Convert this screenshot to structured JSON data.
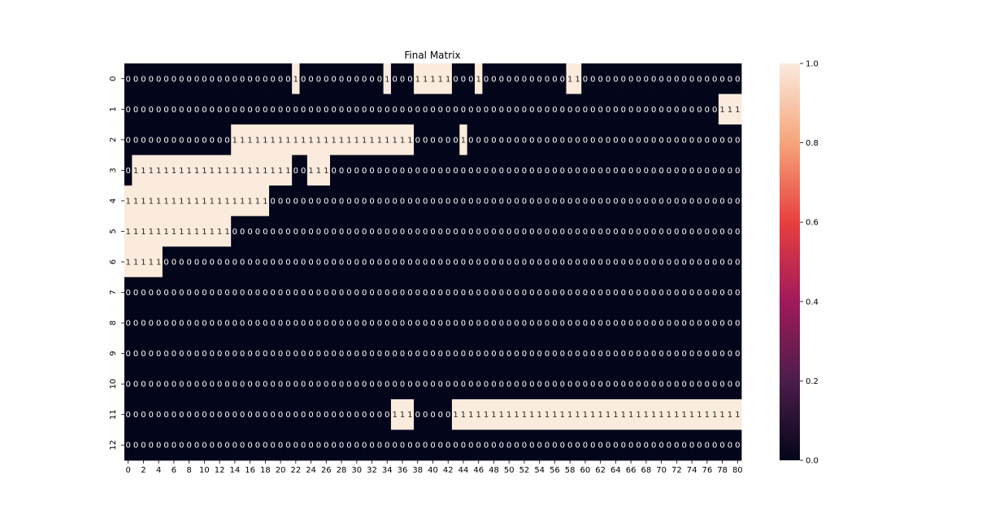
{
  "chart_data": {
    "type": "heatmap",
    "title": "Final Matrix",
    "xlabel": "",
    "ylabel": "",
    "n_rows": 13,
    "n_cols": 81,
    "row_labels": [
      "0",
      "1",
      "2",
      "3",
      "4",
      "5",
      "6",
      "7",
      "8",
      "9",
      "10",
      "11",
      "12"
    ],
    "x_tick_labels": [
      "0",
      "2",
      "4",
      "6",
      "8",
      "10",
      "12",
      "14",
      "16",
      "18",
      "20",
      "22",
      "24",
      "26",
      "28",
      "30",
      "32",
      "34",
      "36",
      "38",
      "40",
      "42",
      "44",
      "46",
      "48",
      "50",
      "52",
      "54",
      "56",
      "58",
      "60",
      "62",
      "64",
      "66",
      "68",
      "70",
      "72",
      "74",
      "76",
      "78",
      "80"
    ],
    "values": [
      [
        0,
        0,
        0,
        0,
        0,
        0,
        0,
        0,
        0,
        0,
        0,
        0,
        0,
        0,
        0,
        0,
        0,
        0,
        0,
        0,
        0,
        0,
        1,
        0,
        0,
        0,
        0,
        0,
        0,
        0,
        0,
        0,
        0,
        0,
        1,
        0,
        0,
        0,
        1,
        1,
        1,
        1,
        1,
        0,
        0,
        0,
        1,
        0,
        0,
        0,
        0,
        0,
        0,
        0,
        0,
        0,
        0,
        0,
        1,
        1,
        0,
        0,
        0,
        0,
        0,
        0,
        0,
        0,
        0,
        0,
        0,
        0,
        0,
        0,
        0,
        0,
        0,
        0,
        0,
        0,
        0
      ],
      [
        0,
        0,
        0,
        0,
        0,
        0,
        0,
        0,
        0,
        0,
        0,
        0,
        0,
        0,
        0,
        0,
        0,
        0,
        0,
        0,
        0,
        0,
        0,
        0,
        0,
        0,
        0,
        0,
        0,
        0,
        0,
        0,
        0,
        0,
        0,
        0,
        0,
        0,
        0,
        0,
        0,
        0,
        0,
        0,
        0,
        0,
        0,
        0,
        0,
        0,
        0,
        0,
        0,
        0,
        0,
        0,
        0,
        0,
        0,
        0,
        0,
        0,
        0,
        0,
        0,
        0,
        0,
        0,
        0,
        0,
        0,
        0,
        0,
        0,
        0,
        0,
        0,
        0,
        1,
        1,
        1
      ],
      [
        0,
        0,
        0,
        0,
        0,
        0,
        0,
        0,
        0,
        0,
        0,
        0,
        0,
        0,
        1,
        1,
        1,
        1,
        1,
        1,
        1,
        1,
        1,
        1,
        1,
        1,
        1,
        1,
        1,
        1,
        1,
        1,
        1,
        1,
        1,
        1,
        1,
        1,
        0,
        0,
        0,
        0,
        0,
        0,
        1,
        0,
        0,
        0,
        0,
        0,
        0,
        0,
        0,
        0,
        0,
        0,
        0,
        0,
        0,
        0,
        0,
        0,
        0,
        0,
        0,
        0,
        0,
        0,
        0,
        0,
        0,
        0,
        0,
        0,
        0,
        0,
        0,
        0,
        0,
        0,
        0
      ],
      [
        0,
        1,
        1,
        1,
        1,
        1,
        1,
        1,
        1,
        1,
        1,
        1,
        1,
        1,
        1,
        1,
        1,
        1,
        1,
        1,
        1,
        1,
        0,
        0,
        1,
        1,
        1,
        0,
        0,
        0,
        0,
        0,
        0,
        0,
        0,
        0,
        0,
        0,
        0,
        0,
        0,
        0,
        0,
        0,
        0,
        0,
        0,
        0,
        0,
        0,
        0,
        0,
        0,
        0,
        0,
        0,
        0,
        0,
        0,
        0,
        0,
        0,
        0,
        0,
        0,
        0,
        0,
        0,
        0,
        0,
        0,
        0,
        0,
        0,
        0,
        0,
        0,
        0,
        0,
        0,
        0
      ],
      [
        1,
        1,
        1,
        1,
        1,
        1,
        1,
        1,
        1,
        1,
        1,
        1,
        1,
        1,
        1,
        1,
        1,
        1,
        1,
        0,
        0,
        0,
        0,
        0,
        0,
        0,
        0,
        0,
        0,
        0,
        0,
        0,
        0,
        0,
        0,
        0,
        0,
        0,
        0,
        0,
        0,
        0,
        0,
        0,
        0,
        0,
        0,
        0,
        0,
        0,
        0,
        0,
        0,
        0,
        0,
        0,
        0,
        0,
        0,
        0,
        0,
        0,
        0,
        0,
        0,
        0,
        0,
        0,
        0,
        0,
        0,
        0,
        0,
        0,
        0,
        0,
        0,
        0,
        0,
        0,
        0
      ],
      [
        1,
        1,
        1,
        1,
        1,
        1,
        1,
        1,
        1,
        1,
        1,
        1,
        1,
        1,
        0,
        0,
        0,
        0,
        0,
        0,
        0,
        0,
        0,
        0,
        0,
        0,
        0,
        0,
        0,
        0,
        0,
        0,
        0,
        0,
        0,
        0,
        0,
        0,
        0,
        0,
        0,
        0,
        0,
        0,
        0,
        0,
        0,
        0,
        0,
        0,
        0,
        0,
        0,
        0,
        0,
        0,
        0,
        0,
        0,
        0,
        0,
        0,
        0,
        0,
        0,
        0,
        0,
        0,
        0,
        0,
        0,
        0,
        0,
        0,
        0,
        0,
        0,
        0,
        0,
        0,
        0
      ],
      [
        1,
        1,
        1,
        1,
        1,
        0,
        0,
        0,
        0,
        0,
        0,
        0,
        0,
        0,
        0,
        0,
        0,
        0,
        0,
        0,
        0,
        0,
        0,
        0,
        0,
        0,
        0,
        0,
        0,
        0,
        0,
        0,
        0,
        0,
        0,
        0,
        0,
        0,
        0,
        0,
        0,
        0,
        0,
        0,
        0,
        0,
        0,
        0,
        0,
        0,
        0,
        0,
        0,
        0,
        0,
        0,
        0,
        0,
        0,
        0,
        0,
        0,
        0,
        0,
        0,
        0,
        0,
        0,
        0,
        0,
        0,
        0,
        0,
        0,
        0,
        0,
        0,
        0,
        0,
        0,
        0
      ],
      [
        0,
        0,
        0,
        0,
        0,
        0,
        0,
        0,
        0,
        0,
        0,
        0,
        0,
        0,
        0,
        0,
        0,
        0,
        0,
        0,
        0,
        0,
        0,
        0,
        0,
        0,
        0,
        0,
        0,
        0,
        0,
        0,
        0,
        0,
        0,
        0,
        0,
        0,
        0,
        0,
        0,
        0,
        0,
        0,
        0,
        0,
        0,
        0,
        0,
        0,
        0,
        0,
        0,
        0,
        0,
        0,
        0,
        0,
        0,
        0,
        0,
        0,
        0,
        0,
        0,
        0,
        0,
        0,
        0,
        0,
        0,
        0,
        0,
        0,
        0,
        0,
        0,
        0,
        0,
        0,
        0
      ],
      [
        0,
        0,
        0,
        0,
        0,
        0,
        0,
        0,
        0,
        0,
        0,
        0,
        0,
        0,
        0,
        0,
        0,
        0,
        0,
        0,
        0,
        0,
        0,
        0,
        0,
        0,
        0,
        0,
        0,
        0,
        0,
        0,
        0,
        0,
        0,
        0,
        0,
        0,
        0,
        0,
        0,
        0,
        0,
        0,
        0,
        0,
        0,
        0,
        0,
        0,
        0,
        0,
        0,
        0,
        0,
        0,
        0,
        0,
        0,
        0,
        0,
        0,
        0,
        0,
        0,
        0,
        0,
        0,
        0,
        0,
        0,
        0,
        0,
        0,
        0,
        0,
        0,
        0,
        0,
        0,
        0
      ],
      [
        0,
        0,
        0,
        0,
        0,
        0,
        0,
        0,
        0,
        0,
        0,
        0,
        0,
        0,
        0,
        0,
        0,
        0,
        0,
        0,
        0,
        0,
        0,
        0,
        0,
        0,
        0,
        0,
        0,
        0,
        0,
        0,
        0,
        0,
        0,
        0,
        0,
        0,
        0,
        0,
        0,
        0,
        0,
        0,
        0,
        0,
        0,
        0,
        0,
        0,
        0,
        0,
        0,
        0,
        0,
        0,
        0,
        0,
        0,
        0,
        0,
        0,
        0,
        0,
        0,
        0,
        0,
        0,
        0,
        0,
        0,
        0,
        0,
        0,
        0,
        0,
        0,
        0,
        0,
        0,
        0
      ],
      [
        0,
        0,
        0,
        0,
        0,
        0,
        0,
        0,
        0,
        0,
        0,
        0,
        0,
        0,
        0,
        0,
        0,
        0,
        0,
        0,
        0,
        0,
        0,
        0,
        0,
        0,
        0,
        0,
        0,
        0,
        0,
        0,
        0,
        0,
        0,
        0,
        0,
        0,
        0,
        0,
        0,
        0,
        0,
        0,
        0,
        0,
        0,
        0,
        0,
        0,
        0,
        0,
        0,
        0,
        0,
        0,
        0,
        0,
        0,
        0,
        0,
        0,
        0,
        0,
        0,
        0,
        0,
        0,
        0,
        0,
        0,
        0,
        0,
        0,
        0,
        0,
        0,
        0,
        0,
        0,
        0
      ],
      [
        0,
        0,
        0,
        0,
        0,
        0,
        0,
        0,
        0,
        0,
        0,
        0,
        0,
        0,
        0,
        0,
        0,
        0,
        0,
        0,
        0,
        0,
        0,
        0,
        0,
        0,
        0,
        0,
        0,
        0,
        0,
        0,
        0,
        0,
        0,
        1,
        1,
        1,
        0,
        0,
        0,
        0,
        0,
        1,
        1,
        1,
        1,
        1,
        1,
        1,
        1,
        1,
        1,
        1,
        1,
        1,
        1,
        1,
        1,
        1,
        1,
        1,
        1,
        1,
        1,
        1,
        1,
        1,
        1,
        1,
        1,
        1,
        1,
        1,
        1,
        1,
        1,
        1,
        1,
        1,
        1
      ],
      [
        0,
        0,
        0,
        0,
        0,
        0,
        0,
        0,
        0,
        0,
        0,
        0,
        0,
        0,
        0,
        0,
        0,
        0,
        0,
        0,
        0,
        0,
        0,
        0,
        0,
        0,
        0,
        0,
        0,
        0,
        0,
        0,
        0,
        0,
        0,
        0,
        0,
        0,
        0,
        0,
        0,
        0,
        0,
        0,
        0,
        0,
        0,
        0,
        0,
        0,
        0,
        0,
        0,
        0,
        0,
        0,
        0,
        0,
        0,
        0,
        0,
        0,
        0,
        0,
        0,
        0,
        0,
        0,
        0,
        0,
        0,
        0,
        0,
        0,
        0,
        0,
        0,
        0,
        0,
        0,
        0
      ]
    ],
    "vmin": 0,
    "vmax": 1,
    "colorbar_ticks": [
      "0.0",
      "0.2",
      "0.4",
      "0.6",
      "0.8",
      "1.0"
    ],
    "colorbar_tick_values": [
      0,
      0.2,
      0.4,
      0.6,
      0.8,
      1.0
    ],
    "colormap": [
      "#03051a",
      "#4c1d4b",
      "#a11a5b",
      "#e83f3f",
      "#f6a47a",
      "#faebdd"
    ],
    "annotations": true
  }
}
